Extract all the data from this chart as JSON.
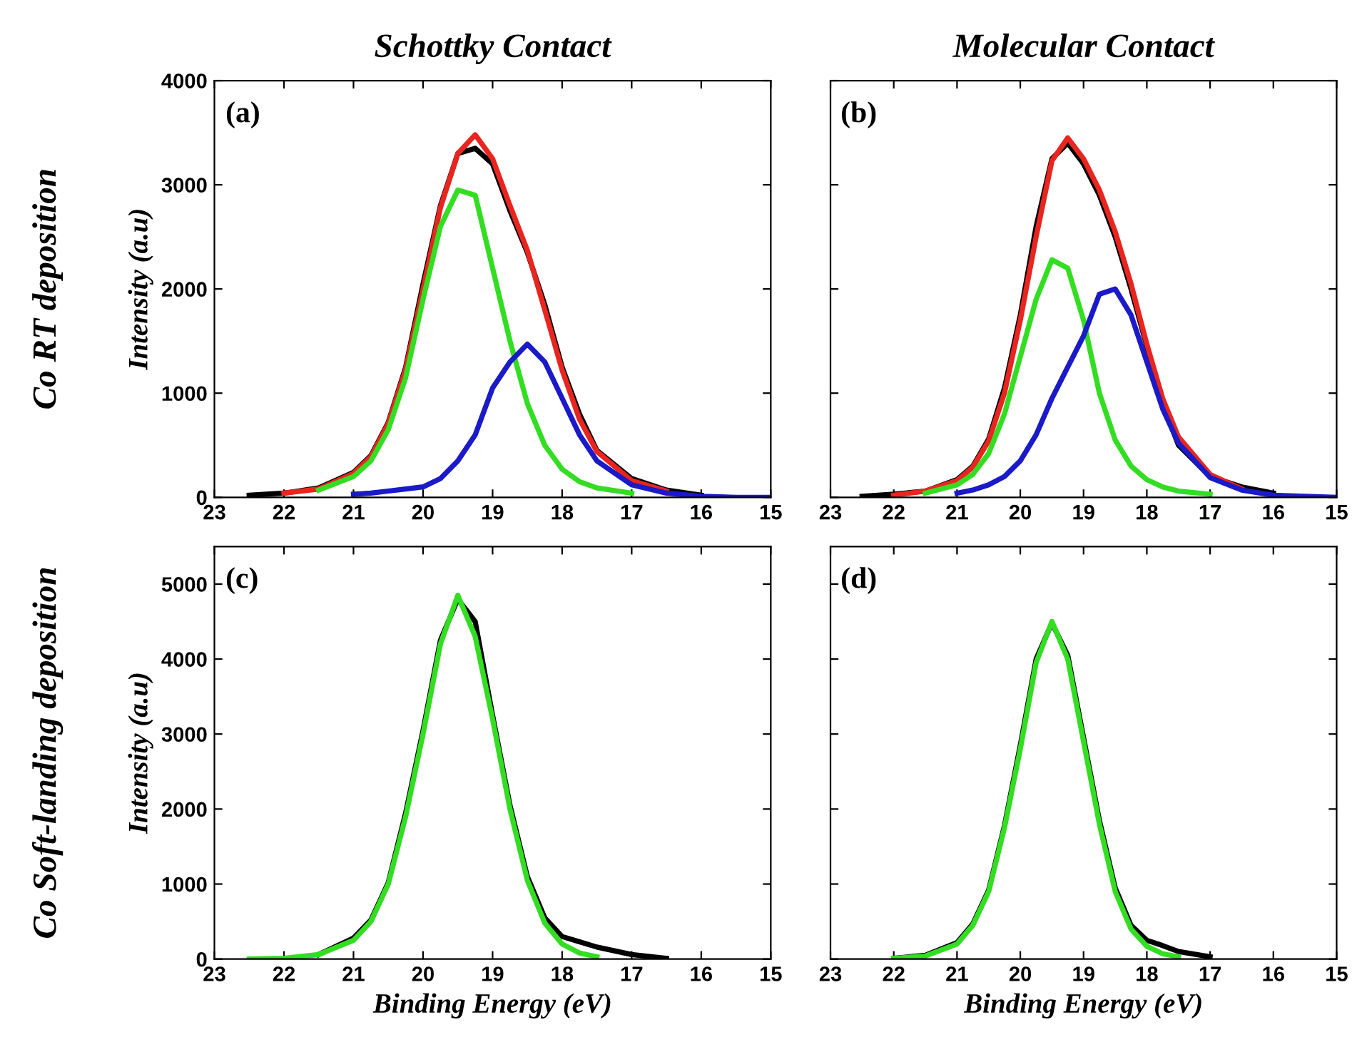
{
  "chart_data": [
    {
      "type": "line",
      "title": "Schottky Contact",
      "ylabel": "Intensity (a.u)",
      "annotations": [
        "(a)",
        "Co RT deposition"
      ],
      "xlim": [
        23,
        15
      ],
      "xticks": [
        23,
        22,
        21,
        20,
        19,
        18,
        17,
        16,
        15
      ],
      "ylim": [
        0,
        4000
      ],
      "yticks": [
        0,
        1000,
        2000,
        3000,
        4000
      ],
      "grid": false,
      "legend": false,
      "series": [
        {
          "color": "#000000",
          "x": [
            22.5,
            22,
            21.5,
            21,
            20.75,
            20.5,
            20.25,
            20,
            19.75,
            19.5,
            19.25,
            19,
            18.75,
            18.5,
            18.25,
            18,
            17.75,
            17.5,
            17,
            16.5,
            16
          ],
          "values": [
            20,
            40,
            90,
            240,
            400,
            720,
            1250,
            2050,
            2800,
            3300,
            3350,
            3200,
            2750,
            2350,
            1850,
            1250,
            800,
            450,
            180,
            70,
            20
          ]
        },
        {
          "color": "#e8251f",
          "x": [
            22,
            21.5,
            21,
            20.75,
            20.5,
            20.25,
            20,
            19.75,
            19.5,
            19.25,
            19,
            18.75,
            18.5,
            18.25,
            18,
            17.75,
            17.5,
            17,
            16.5
          ],
          "values": [
            40,
            80,
            230,
            390,
            710,
            1230,
            2000,
            2780,
            3300,
            3480,
            3250,
            2800,
            2370,
            1800,
            1220,
            750,
            440,
            160,
            60
          ]
        },
        {
          "color": "#33dd22",
          "x": [
            21.5,
            21,
            20.75,
            20.5,
            20.25,
            20,
            19.75,
            19.5,
            19.25,
            19,
            18.75,
            18.5,
            18.25,
            18,
            17.75,
            17.5,
            17
          ],
          "values": [
            70,
            200,
            350,
            650,
            1150,
            1900,
            2600,
            2950,
            2900,
            2200,
            1500,
            900,
            500,
            270,
            150,
            90,
            40
          ]
        },
        {
          "color": "#1a1ac8",
          "x": [
            21,
            20.75,
            20.5,
            20.25,
            20,
            19.75,
            19.5,
            19.25,
            19,
            18.75,
            18.5,
            18.25,
            18,
            17.75,
            17.5,
            17,
            16.5,
            16,
            15.5,
            15
          ],
          "values": [
            30,
            40,
            60,
            80,
            100,
            180,
            350,
            600,
            1050,
            1300,
            1470,
            1300,
            950,
            600,
            350,
            120,
            40,
            10,
            0,
            0
          ]
        }
      ]
    },
    {
      "type": "line",
      "title": "Molecular Contact",
      "annotations": [
        "(b)"
      ],
      "tick_labels": "x",
      "xlim": [
        23,
        15
      ],
      "xticks": [
        23,
        22,
        21,
        20,
        19,
        18,
        17,
        16,
        15
      ],
      "ylim": [
        0,
        4000
      ],
      "yticks": [
        0,
        1000,
        2000,
        3000,
        4000
      ],
      "grid": false,
      "legend": false,
      "series": [
        {
          "color": "#000000",
          "x": [
            22.5,
            22,
            21.5,
            21,
            20.75,
            20.5,
            20.25,
            20,
            19.75,
            19.5,
            19.25,
            19,
            18.75,
            18.5,
            18.25,
            18,
            17.75,
            17.5,
            17,
            16.5,
            16
          ],
          "values": [
            10,
            30,
            60,
            170,
            300,
            560,
            1050,
            1750,
            2600,
            3250,
            3400,
            3200,
            2900,
            2500,
            2000,
            1450,
            900,
            500,
            200,
            100,
            40
          ]
        },
        {
          "color": "#e8251f",
          "x": [
            22,
            21.5,
            21,
            20.75,
            20.5,
            20.25,
            20,
            19.75,
            19.5,
            19.25,
            19,
            18.75,
            18.5,
            18.25,
            18,
            17.75,
            17.5,
            17,
            16.5
          ],
          "values": [
            20,
            60,
            160,
            290,
            540,
            1000,
            1700,
            2500,
            3230,
            3450,
            3250,
            2950,
            2550,
            2050,
            1470,
            950,
            580,
            220,
            80
          ]
        },
        {
          "color": "#33dd22",
          "x": [
            21.5,
            21,
            20.75,
            20.5,
            20.25,
            20,
            19.75,
            19.5,
            19.25,
            19,
            18.75,
            18.5,
            18.25,
            18,
            17.75,
            17.5,
            17
          ],
          "values": [
            40,
            120,
            220,
            420,
            800,
            1350,
            1900,
            2280,
            2200,
            1700,
            1000,
            550,
            300,
            170,
            100,
            60,
            30
          ]
        },
        {
          "color": "#1a1ac8",
          "x": [
            21,
            20.75,
            20.5,
            20.25,
            20,
            19.75,
            19.5,
            19.25,
            19,
            18.75,
            18.5,
            18.25,
            18,
            17.75,
            17.5,
            17,
            16.5,
            16,
            15.5,
            15
          ],
          "values": [
            40,
            70,
            120,
            200,
            350,
            600,
            950,
            1250,
            1550,
            1950,
            2000,
            1750,
            1300,
            850,
            520,
            190,
            70,
            20,
            10,
            0
          ]
        }
      ]
    },
    {
      "type": "line",
      "xlabel": "Binding Energy (eV)",
      "ylabel": "Intensity (a.u)",
      "annotations": [
        "(c)",
        "Co Soft-landing deposition"
      ],
      "xlim": [
        23,
        15
      ],
      "xticks": [
        23,
        22,
        21,
        20,
        19,
        18,
        17,
        16,
        15
      ],
      "ylim": [
        0,
        5500
      ],
      "yticks": [
        0,
        1000,
        2000,
        3000,
        4000,
        5000
      ],
      "grid": false,
      "legend": false,
      "series": [
        {
          "color": "#000000",
          "x": [
            21.5,
            21,
            20.75,
            20.5,
            20.25,
            20,
            19.75,
            19.5,
            19.25,
            19,
            18.75,
            18.5,
            18.25,
            18,
            17.75,
            17.5,
            17,
            16.5
          ],
          "values": [
            60,
            280,
            520,
            1020,
            1950,
            3050,
            4250,
            4800,
            4500,
            3250,
            2050,
            1100,
            550,
            300,
            230,
            160,
            60,
            10
          ]
        },
        {
          "color": "#33dd22",
          "x": [
            22.5,
            22,
            21.5,
            21,
            20.75,
            20.5,
            20.25,
            20,
            19.75,
            19.5,
            19.25,
            19,
            18.75,
            18.5,
            18.25,
            18,
            17.75,
            17.5
          ],
          "values": [
            0,
            10,
            60,
            250,
            500,
            1000,
            1900,
            3000,
            4200,
            4850,
            4300,
            3200,
            2000,
            1050,
            480,
            200,
            80,
            30
          ]
        }
      ]
    },
    {
      "type": "line",
      "xlabel": "Binding Energy (eV)",
      "annotations": [
        "(d)"
      ],
      "tick_labels": "x",
      "xlim": [
        23,
        15
      ],
      "xticks": [
        23,
        22,
        21,
        20,
        19,
        18,
        17,
        16,
        15
      ],
      "ylim": [
        0,
        5500
      ],
      "yticks": [
        0,
        1000,
        2000,
        3000,
        4000,
        5000
      ],
      "grid": false,
      "legend": false,
      "series": [
        {
          "color": "#000000",
          "x": [
            22,
            21.5,
            21,
            20.75,
            20.5,
            20.25,
            20,
            19.75,
            19.5,
            19.25,
            19,
            18.75,
            18.5,
            18.25,
            18,
            17.75,
            17.5,
            17
          ],
          "values": [
            10,
            50,
            220,
            470,
            920,
            1780,
            2850,
            4000,
            4480,
            4050,
            2950,
            1850,
            950,
            450,
            250,
            180,
            100,
            30
          ]
        },
        {
          "color": "#33dd22",
          "x": [
            22,
            21.5,
            21,
            20.75,
            20.5,
            20.25,
            20,
            19.75,
            19.5,
            19.25,
            19,
            18.75,
            18.5,
            18.25,
            18,
            17.75,
            17.5
          ],
          "values": [
            10,
            40,
            200,
            450,
            900,
            1750,
            2800,
            3950,
            4500,
            4000,
            2900,
            1800,
            900,
            400,
            170,
            70,
            30
          ]
        }
      ]
    }
  ]
}
